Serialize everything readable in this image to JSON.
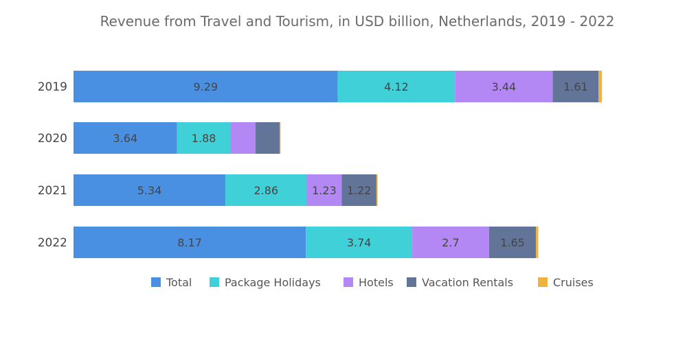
{
  "chart_data": {
    "type": "bar",
    "orientation": "horizontal",
    "stacked": true,
    "title": "Revenue from Travel and Tourism,  in USD billion, Netherlands, 2019 - 2022",
    "categories": [
      "2019",
      "2020",
      "2021",
      "2022"
    ],
    "series": [
      {
        "name": "Total",
        "color": "#4a90e2",
        "values": [
          9.29,
          3.64,
          5.34,
          8.17
        ]
      },
      {
        "name": "Package Holidays",
        "color": "#40d0d8",
        "values": [
          4.12,
          1.88,
          2.86,
          3.74
        ]
      },
      {
        "name": "Hotels",
        "color": "#b388f5",
        "values": [
          3.44,
          0.88,
          1.23,
          2.7
        ]
      },
      {
        "name": "Vacation Rentals",
        "color": "#627599",
        "values": [
          1.61,
          0.85,
          1.22,
          1.65
        ]
      },
      {
        "name": "Cruises",
        "color": "#f0b23e",
        "values": [
          0.12,
          0.03,
          0.04,
          0.08
        ]
      }
    ],
    "data_labels": [
      [
        "9.29",
        "4.12",
        "3.44",
        "1.61",
        ""
      ],
      [
        "3.64",
        "1.88",
        "",
        "",
        ""
      ],
      [
        "5.34",
        "2.86",
        "1.23",
        "1.22",
        ""
      ],
      [
        "8.17",
        "3.74",
        "2.7",
        "1.65",
        ""
      ]
    ],
    "legend_position": "bottom",
    "grid": false,
    "xlim": [
      0,
      22
    ]
  }
}
